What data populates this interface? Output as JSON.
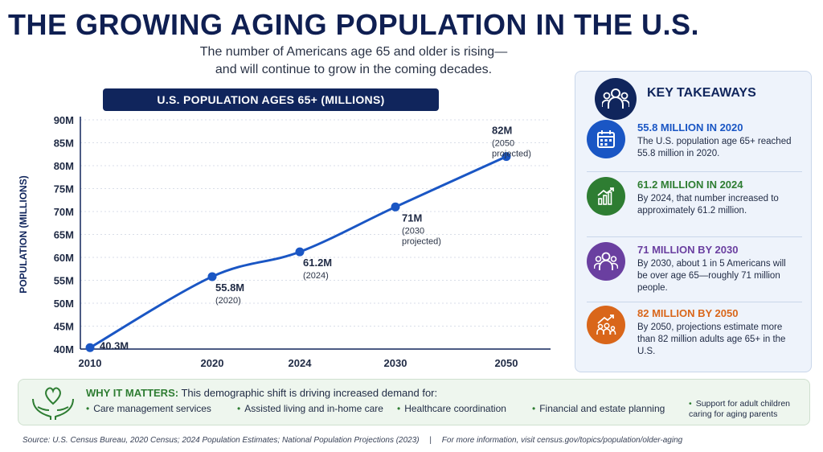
{
  "header": {
    "title": "THE GROWING AGING POPULATION IN THE U.S.",
    "subtitle_line1": "The number of Americans age 65 and older is rising—",
    "subtitle_line2": "and will continue to grow in the coming decades."
  },
  "chart_data": {
    "type": "line",
    "title": "U.S. POPULATION AGES 65+ (MILLIONS)",
    "ylabel": "POPULATION (MILLIONS)",
    "xlabel": "",
    "x": [
      2010,
      2020,
      2024,
      2030,
      2050
    ],
    "x_tick_labels": [
      "2010",
      "2020",
      "2024",
      "2030",
      "2050"
    ],
    "values": [
      40.3,
      55.8,
      61.2,
      71,
      82
    ],
    "ylim": [
      40,
      90
    ],
    "y_ticks": [
      40,
      45,
      50,
      55,
      60,
      65,
      70,
      75,
      80,
      85,
      90
    ],
    "y_tick_labels": [
      "40M",
      "45M",
      "50M",
      "55M",
      "60M",
      "65M",
      "70M",
      "75M",
      "80M",
      "85M",
      "90M"
    ],
    "grid": true,
    "point_labels": [
      {
        "value": "40.3M",
        "note": ""
      },
      {
        "value": "55.8M",
        "note": "(2020)"
      },
      {
        "value": "61.2M",
        "note": "(2024)"
      },
      {
        "value": "71M",
        "note": "(2030",
        "note2": "projected)"
      },
      {
        "value": "82M",
        "note": "(2050",
        "note2": "projected)"
      }
    ],
    "line_color": "#1a56c4"
  },
  "panel": {
    "title": "KEY TAKEAWAYS",
    "icon": "people-group-icon",
    "items": [
      {
        "heading": "55.8 MILLION IN 2020",
        "body": "The U.S. population age 65+ reached 55.8 million in 2020.",
        "icon": "calendar-icon",
        "color": "#1a56c4"
      },
      {
        "heading": "61.2 MILLION IN 2024",
        "body": "By 2024, that number increased to approximately 61.2 million.",
        "icon": "bar-chart-up-icon",
        "color": "#2e7d32"
      },
      {
        "heading": "71 MILLION BY 2030",
        "body": "By 2030, about 1 in 5 Americans will be over age 65—roughly 71 million people.",
        "icon": "people-group-icon",
        "color": "#6a3fa0"
      },
      {
        "heading": "82 MILLION BY 2050",
        "body": "By 2050, projections estimate more than 82 million adults age 65+ in the U.S.",
        "icon": "family-growth-icon",
        "color": "#d9661a"
      }
    ]
  },
  "why": {
    "label": "WHY IT MATTERS:",
    "text": "This demographic shift is driving increased demand for:",
    "icon": "heart-hands-icon",
    "items": [
      "Care management services",
      "Assisted living and in-home care",
      "Healthcare coordination",
      "Financial and estate planning",
      "Support for adult children caring for aging parents"
    ]
  },
  "footer": {
    "source": "Source: U.S. Census Bureau, 2020 Census; 2024 Population Estimates; National Population Projections (2023)",
    "separator": "|",
    "more": "For more information, visit census.gov/topics/population/older-aging"
  },
  "colors": {
    "navy": "#10255c",
    "blue": "#1a56c4",
    "green": "#2e7d32",
    "purple": "#6a3fa0",
    "orange": "#d9661a"
  }
}
